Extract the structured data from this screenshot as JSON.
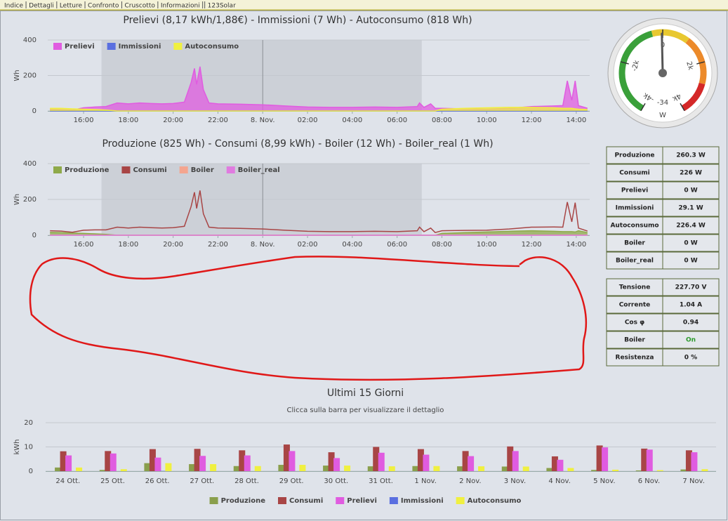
{
  "nav": [
    "Indice",
    "Dettagli",
    "Letture",
    "Confronto",
    "Cruscotto",
    "Informazioni",
    "123Solar"
  ],
  "chart_data": [
    {
      "type": "area",
      "title": "Prelievi (8,17 kWh/1,88€) - Immissioni (7 Wh) - Autoconsumo (818 Wh)",
      "ylabel": "Wh",
      "x": [
        14.5,
        15,
        15.5,
        16,
        16.5,
        17,
        17.5,
        18,
        18.5,
        19,
        19.5,
        20,
        20.5,
        20.8,
        20.95,
        21.05,
        21.2,
        21.35,
        21.6,
        22,
        23,
        24,
        25,
        26,
        27,
        28,
        29,
        30,
        30.9,
        31,
        31.2,
        31.5,
        31.7,
        32,
        33,
        34,
        35,
        36,
        37,
        37.4,
        37.6,
        37.8,
        37.95,
        38.1,
        38.5
      ],
      "xlim": [
        14.4,
        38.6
      ],
      "ylim": [
        0,
        400
      ],
      "yticks": [
        0,
        200,
        400
      ],
      "xticks": [
        {
          "value": 16,
          "label": "16:00"
        },
        {
          "value": 18,
          "label": "18:00"
        },
        {
          "value": 20,
          "label": "20:00"
        },
        {
          "value": 22,
          "label": "22:00"
        },
        {
          "value": 24,
          "label": "8. Nov."
        },
        {
          "value": 26,
          "label": "02:00"
        },
        {
          "value": 28,
          "label": "04:00"
        },
        {
          "value": 30,
          "label": "06:00"
        },
        {
          "value": 32,
          "label": "08:00"
        },
        {
          "value": 34,
          "label": "10:00"
        },
        {
          "value": 36,
          "label": "12:00"
        },
        {
          "value": 38,
          "label": "14:00"
        }
      ],
      "plot_bands": [
        {
          "from": 16.8,
          "to": 31.1
        }
      ],
      "plot_lines": [
        24
      ],
      "grid": true,
      "series": [
        {
          "name": "Prelievi",
          "color": "#e05ce0",
          "values": [
            10,
            8,
            5,
            18,
            22,
            25,
            45,
            40,
            45,
            42,
            40,
            42,
            50,
            160,
            240,
            150,
            250,
            120,
            45,
            40,
            38,
            35,
            28,
            22,
            20,
            20,
            22,
            20,
            25,
            45,
            20,
            40,
            15,
            15,
            12,
            10,
            15,
            25,
            28,
            30,
            170,
            60,
            170,
            30,
            15
          ]
        },
        {
          "name": "Immissioni",
          "color": "#5a6fe0",
          "values": [
            0,
            0,
            0,
            0,
            0,
            0,
            0,
            0,
            0,
            0,
            0,
            0,
            0,
            0,
            0,
            0,
            0,
            0,
            0,
            0,
            0,
            0,
            0,
            0,
            0,
            0,
            0,
            0,
            0,
            0,
            0,
            0,
            0,
            0,
            0,
            0,
            0,
            0,
            0,
            0,
            0,
            0,
            0,
            0,
            0
          ]
        },
        {
          "name": "Autoconsumo",
          "color": "#f0f040",
          "values": [
            15,
            15,
            12,
            10,
            8,
            5,
            0,
            0,
            0,
            0,
            0,
            0,
            0,
            0,
            0,
            0,
            0,
            0,
            0,
            0,
            0,
            0,
            0,
            0,
            0,
            0,
            0,
            0,
            0,
            0,
            0,
            0,
            0,
            10,
            15,
            18,
            20,
            20,
            18,
            15,
            15,
            15,
            12,
            10,
            8
          ]
        }
      ]
    },
    {
      "type": "line",
      "title": "Produzione (825 Wh) - Consumi (8,99 kWh) - Boiler (12 Wh) - Boiler_real (1 Wh)",
      "ylabel": "Wh",
      "x": [
        14.5,
        15,
        15.5,
        16,
        16.5,
        17,
        17.5,
        18,
        18.5,
        19,
        19.5,
        20,
        20.5,
        20.8,
        20.95,
        21.05,
        21.2,
        21.35,
        21.6,
        22,
        23,
        24,
        25,
        26,
        27,
        28,
        29,
        30,
        30.9,
        31,
        31.2,
        31.5,
        31.7,
        32,
        33,
        34,
        35,
        36,
        37,
        37.4,
        37.6,
        37.8,
        37.95,
        38.1,
        38.5
      ],
      "xlim": [
        14.4,
        38.6
      ],
      "ylim": [
        0,
        400
      ],
      "yticks": [
        0,
        200,
        400
      ],
      "xticks": [
        {
          "value": 16,
          "label": "16:00"
        },
        {
          "value": 18,
          "label": "18:00"
        },
        {
          "value": 20,
          "label": "20:00"
        },
        {
          "value": 22,
          "label": "22:00"
        },
        {
          "value": 24,
          "label": "8. Nov."
        },
        {
          "value": 26,
          "label": "02:00"
        },
        {
          "value": 28,
          "label": "04:00"
        },
        {
          "value": 30,
          "label": "06:00"
        },
        {
          "value": 32,
          "label": "08:00"
        },
        {
          "value": 34,
          "label": "10:00"
        },
        {
          "value": 36,
          "label": "12:00"
        },
        {
          "value": 38,
          "label": "14:00"
        }
      ],
      "plot_bands": [
        {
          "from": 16.8,
          "to": 31.1
        }
      ],
      "plot_lines": [
        24
      ],
      "grid": true,
      "series": [
        {
          "name": "Produzione",
          "color": "#8faa4a",
          "values": [
            16,
            15,
            12,
            10,
            8,
            5,
            0,
            0,
            0,
            0,
            0,
            0,
            0,
            0,
            0,
            0,
            0,
            0,
            0,
            0,
            0,
            0,
            0,
            0,
            0,
            0,
            0,
            0,
            0,
            0,
            0,
            0,
            0,
            10,
            15,
            18,
            22,
            25,
            22,
            20,
            20,
            20,
            18,
            25,
            15
          ]
        },
        {
          "name": "Consumi",
          "color": "#a84545",
          "values": [
            25,
            23,
            17,
            28,
            30,
            30,
            45,
            40,
            45,
            42,
            40,
            42,
            50,
            160,
            240,
            150,
            250,
            120,
            45,
            40,
            38,
            35,
            28,
            22,
            20,
            20,
            22,
            20,
            25,
            45,
            20,
            40,
            15,
            25,
            27,
            28,
            35,
            45,
            46,
            45,
            185,
            75,
            182,
            40,
            23
          ]
        },
        {
          "name": "Boiler",
          "color": "#f4a58f",
          "values": [
            0,
            0,
            0,
            0,
            0,
            0,
            0,
            0,
            0,
            0,
            0,
            0,
            0,
            0,
            0,
            0,
            0,
            0,
            0,
            0,
            0,
            0,
            0,
            0,
            0,
            0,
            0,
            0,
            0,
            0,
            0,
            0,
            0,
            0,
            0,
            0,
            0,
            0,
            0,
            0,
            0,
            0,
            0,
            0,
            0
          ]
        },
        {
          "name": "Boiler_real",
          "color": "#e07be0",
          "values": [
            0,
            0,
            0,
            0,
            0,
            0,
            0,
            0,
            0,
            0,
            0,
            0,
            0,
            0,
            0,
            0,
            0,
            0,
            0,
            0,
            0,
            0,
            0,
            0,
            0,
            0,
            0,
            0,
            0,
            0,
            0,
            0,
            0,
            0,
            0,
            0,
            0,
            0,
            0,
            0,
            0,
            0,
            0,
            0,
            0
          ]
        }
      ]
    },
    {
      "type": "bar",
      "title": "Ultimi 15 Giorni",
      "subtitle": "Clicca sulla barra per visualizzare il dettaglio",
      "ylabel": "kWh",
      "categories": [
        "24 Ott.",
        "25 Ott.",
        "26 Ott.",
        "27 Ott.",
        "28 Ott.",
        "29 Ott.",
        "30 Ott.",
        "31 Ott.",
        "1 Nov.",
        "2 Nov.",
        "3 Nov.",
        "4 Nov.",
        "5 Nov.",
        "6 Nov.",
        "7 Nov."
      ],
      "ylim": [
        0,
        20
      ],
      "yticks": [
        0,
        10,
        20
      ],
      "grid": true,
      "series": [
        {
          "name": "Produzione",
          "color": "#8a9f4c",
          "values": [
            1.5,
            0.5,
            3.3,
            2.9,
            2.1,
            2.6,
            2.3,
            2.0,
            2.1,
            2.0,
            1.9,
            1.3,
            0.5,
            0.3,
            0.7
          ]
        },
        {
          "name": "Consumi",
          "color": "#a84545",
          "values": [
            8.2,
            8.3,
            9.1,
            9.2,
            8.6,
            11,
            7.8,
            10,
            9.1,
            8.3,
            10.2,
            6.1,
            10.6,
            9.3,
            8.6
          ]
        },
        {
          "name": "Prelievi",
          "color": "#e05ce0",
          "values": [
            6.5,
            7.3,
            5.6,
            6.3,
            6.5,
            8.3,
            5.4,
            7.6,
            6.8,
            6.2,
            8.3,
            4.7,
            9.8,
            8.9,
            7.8
          ]
        },
        {
          "name": "Immissioni",
          "color": "#5a6fe0",
          "values": [
            0,
            0,
            0.1,
            0,
            0,
            0,
            0,
            0,
            0,
            0,
            0,
            0,
            0,
            0,
            0
          ]
        },
        {
          "name": "Autoconsumo",
          "color": "#f0f040",
          "values": [
            1.5,
            0.8,
            3.3,
            2.9,
            2.1,
            2.6,
            2.3,
            2.0,
            2.1,
            2.0,
            1.9,
            1.3,
            0.6,
            0.4,
            0.8
          ]
        }
      ]
    }
  ],
  "gauge": {
    "value": -34,
    "unit": "W",
    "lim": [
      -4000,
      4000
    ],
    "ticks": [
      {
        "value": -4000,
        "label": "-4k"
      },
      {
        "value": -2000,
        "label": "-2k"
      },
      0,
      {
        "value": 2000,
        "label": "2k"
      },
      {
        "value": 4000,
        "label": "4k"
      }
    ],
    "bands": [
      {
        "from": -4000,
        "to": -400,
        "color": "#3aa03a"
      },
      {
        "from": -400,
        "to": 1000,
        "color": "#e8c830"
      },
      {
        "from": 1000,
        "to": 2800,
        "color": "#ec8a2a"
      },
      {
        "from": 2800,
        "to": 4000,
        "color": "#d42828"
      }
    ]
  },
  "tables": [
    {
      "rows": [
        [
          "Produzione",
          "260.3 W"
        ],
        [
          "Consumi",
          "226 W"
        ],
        [
          "Prelievi",
          "0 W"
        ],
        [
          "Immissioni",
          "29.1 W"
        ],
        [
          "Autoconsumo",
          "226.4 W"
        ],
        [
          "Boiler",
          "0 W"
        ],
        [
          "Boiler_real",
          "0 W"
        ]
      ]
    },
    {
      "rows": [
        [
          "Tensione",
          "227.70 V"
        ],
        [
          "Corrente",
          "1.04 A"
        ],
        [
          "Cos φ",
          "0.94"
        ],
        [
          "Boiler",
          "On"
        ],
        [
          "Resistenza",
          "0 %"
        ]
      ]
    }
  ]
}
